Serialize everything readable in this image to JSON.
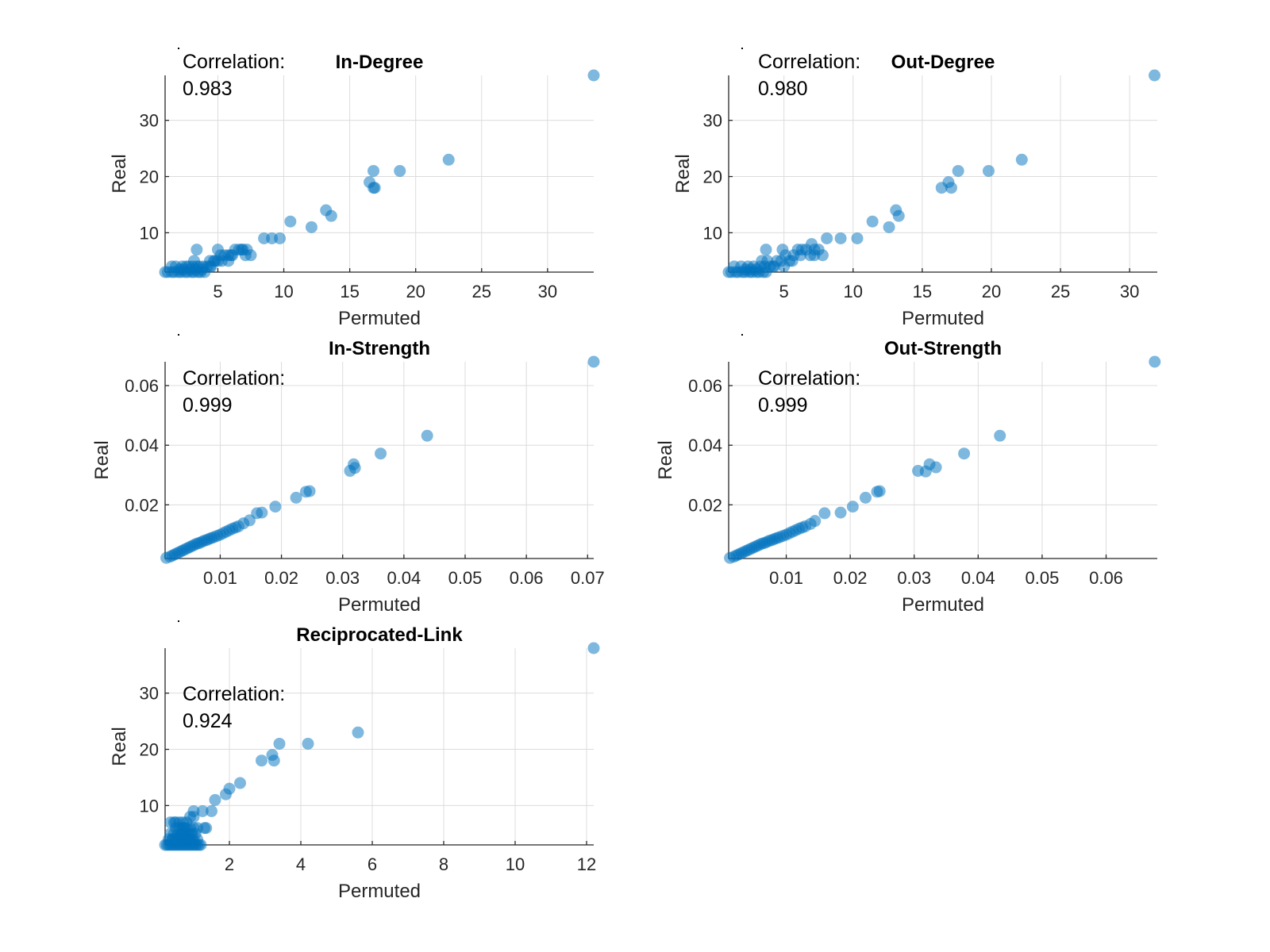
{
  "chart_data": [
    {
      "type": "scatter",
      "title": "In-Degree",
      "xlabel": "Permuted",
      "ylabel": "Real",
      "correlation_label": "Correlation:",
      "correlation_value": "0.983",
      "xlim": [
        1,
        33.5
      ],
      "ylim": [
        3,
        38
      ],
      "xticks": [
        5,
        10,
        15,
        20,
        25,
        30
      ],
      "yticks": [
        10,
        20,
        30
      ],
      "grid": true,
      "marker_color": "#0072BD",
      "x": [
        1,
        1.2,
        1.5,
        1.7,
        2,
        2.2,
        2.5,
        2.7,
        3,
        3.2,
        3.5,
        3.7,
        4,
        1.5,
        1.8,
        2.3,
        2.6,
        2.8,
        3.1,
        3.4,
        3.6,
        3.9,
        2.1,
        2.4,
        2.9,
        3.3,
        3.8,
        4.2,
        4.5,
        4.8,
        5,
        5.3,
        4.4,
        4.7,
        5.5,
        5.8,
        6,
        6.3,
        6.6,
        6.9,
        7.2,
        7.5,
        5.2,
        6.1,
        6.8,
        7.1,
        3.4,
        5,
        5.8,
        4.4,
        3.2,
        8.5,
        9.1,
        9.7,
        10.5,
        12.1,
        13.2,
        13.6,
        16.5,
        16.8,
        16.8,
        16.9,
        18.8,
        22.5,
        33.5
      ],
      "y": [
        3,
        3,
        3,
        3,
        3,
        3,
        3,
        3,
        3,
        3,
        3,
        3,
        3,
        4,
        4,
        4,
        4,
        4,
        4,
        4,
        4,
        4,
        3.5,
        3.5,
        3.5,
        3.5,
        3.5,
        4,
        4,
        5,
        5,
        5,
        5,
        5,
        6,
        6,
        6,
        7,
        7,
        7,
        7,
        6,
        6,
        6,
        7,
        6,
        7,
        7,
        5,
        4,
        5,
        9,
        9,
        9,
        12,
        11,
        14,
        13,
        19,
        21,
        18,
        18,
        21,
        23,
        38
      ]
    },
    {
      "type": "scatter",
      "title": "Out-Degree",
      "xlabel": "Permuted",
      "ylabel": "Real",
      "correlation_label": "Correlation:",
      "correlation_value": "0.980",
      "xlim": [
        1,
        32
      ],
      "ylim": [
        3,
        38
      ],
      "xticks": [
        5,
        10,
        15,
        20,
        25,
        30
      ],
      "yticks": [
        10,
        20,
        30
      ],
      "grid": true,
      "marker_color": "#0072BD",
      "x": [
        1,
        1.2,
        1.5,
        1.7,
        2,
        2.2,
        2.5,
        2.7,
        3,
        3.2,
        3.5,
        3.7,
        1.4,
        1.9,
        2.4,
        2.8,
        3.3,
        3.6,
        4,
        2.2,
        2.6,
        3,
        3.4,
        3.8,
        4.2,
        4.5,
        4.8,
        5.1,
        5.4,
        4.3,
        5,
        5.7,
        6,
        6.3,
        6.6,
        6.9,
        7.2,
        7.5,
        7,
        5.6,
        6.2,
        7.2,
        3.7,
        4.9,
        7.8,
        8.1,
        9.1,
        10.3,
        11.4,
        12.6,
        13.1,
        13.3,
        16.4,
        16.9,
        17.1,
        17.6,
        19.8,
        22.2,
        31.8
      ],
      "y": [
        3,
        3,
        3,
        3,
        3,
        3,
        3,
        3,
        3,
        3,
        3,
        3,
        4,
        4,
        4,
        4,
        4,
        4,
        4,
        3.5,
        3.5,
        3.5,
        5,
        5,
        4,
        5,
        5,
        6,
        5,
        4,
        4,
        6,
        7,
        7,
        7,
        6,
        6,
        7,
        8,
        5,
        6,
        7,
        7,
        7,
        6,
        9,
        9,
        9,
        12,
        11,
        14,
        13,
        18,
        19,
        18,
        21,
        21,
        23,
        38
      ]
    },
    {
      "type": "scatter",
      "title": "In-Strength",
      "xlabel": "Permuted",
      "ylabel": "Real",
      "correlation_label": "Correlation:",
      "correlation_value": "0.999",
      "xlim": [
        0.001,
        0.071
      ],
      "ylim": [
        0.002,
        0.068
      ],
      "xticks": [
        0.01,
        0.02,
        0.03,
        0.04,
        0.05,
        0.06,
        0.07
      ],
      "xtick_labels": [
        "0.01",
        "0.02",
        "0.03",
        "0.04",
        "0.05",
        "0.06",
        "0.07"
      ],
      "yticks": [
        0.02,
        0.04,
        0.06
      ],
      "ytick_labels": [
        "0.02",
        "0.04",
        "0.06"
      ],
      "grid": true,
      "marker_color": "#0072BD",
      "x": [
        0.0012,
        0.0018,
        0.0022,
        0.0026,
        0.003,
        0.0034,
        0.0038,
        0.0042,
        0.0046,
        0.005,
        0.0054,
        0.0058,
        0.0062,
        0.0066,
        0.007,
        0.0074,
        0.0078,
        0.0082,
        0.0086,
        0.009,
        0.0095,
        0.01,
        0.0105,
        0.011,
        0.0115,
        0.012,
        0.0125,
        0.013,
        0.0138,
        0.0148,
        0.016,
        0.0168,
        0.019,
        0.0224,
        0.024,
        0.0246,
        0.0312,
        0.0318,
        0.032,
        0.0362,
        0.0438,
        0.071
      ],
      "y": [
        0.0022,
        0.0026,
        0.003,
        0.0034,
        0.0038,
        0.0042,
        0.0046,
        0.005,
        0.0054,
        0.0058,
        0.0062,
        0.0066,
        0.007,
        0.0072,
        0.0076,
        0.008,
        0.0082,
        0.0086,
        0.0089,
        0.0092,
        0.0096,
        0.01,
        0.0105,
        0.011,
        0.0115,
        0.012,
        0.0124,
        0.0128,
        0.0138,
        0.0148,
        0.0172,
        0.0174,
        0.0194,
        0.0224,
        0.0244,
        0.0246,
        0.0314,
        0.0336,
        0.0324,
        0.0372,
        0.0432,
        0.068
      ]
    },
    {
      "type": "scatter",
      "title": "Out-Strength",
      "xlabel": "Permuted",
      "ylabel": "Real",
      "correlation_label": "Correlation:",
      "correlation_value": "0.999",
      "xlim": [
        0.001,
        0.068
      ],
      "ylim": [
        0.002,
        0.068
      ],
      "xticks": [
        0.01,
        0.02,
        0.03,
        0.04,
        0.05,
        0.06
      ],
      "xtick_labels": [
        "0.01",
        "0.02",
        "0.03",
        "0.04",
        "0.05",
        "0.06"
      ],
      "yticks": [
        0.02,
        0.04,
        0.06
      ],
      "ytick_labels": [
        "0.02",
        "0.04",
        "0.06"
      ],
      "grid": true,
      "marker_color": "#0072BD",
      "x": [
        0.0012,
        0.0018,
        0.0022,
        0.0026,
        0.003,
        0.0034,
        0.0038,
        0.0042,
        0.0046,
        0.005,
        0.0054,
        0.0058,
        0.0062,
        0.0066,
        0.007,
        0.0074,
        0.0078,
        0.0082,
        0.0086,
        0.009,
        0.0095,
        0.01,
        0.0105,
        0.011,
        0.0115,
        0.012,
        0.0125,
        0.013,
        0.0138,
        0.0145,
        0.016,
        0.0185,
        0.0204,
        0.0224,
        0.0242,
        0.0246,
        0.0306,
        0.0318,
        0.0324,
        0.0334,
        0.0378,
        0.0434,
        0.0676
      ],
      "y": [
        0.0022,
        0.0026,
        0.003,
        0.0034,
        0.0038,
        0.0042,
        0.0046,
        0.005,
        0.0054,
        0.0058,
        0.0062,
        0.0066,
        0.007,
        0.0072,
        0.0076,
        0.008,
        0.0082,
        0.0086,
        0.0089,
        0.0092,
        0.0096,
        0.01,
        0.0105,
        0.011,
        0.0115,
        0.012,
        0.0124,
        0.0128,
        0.0136,
        0.0146,
        0.0172,
        0.0174,
        0.0194,
        0.0224,
        0.0244,
        0.0246,
        0.0314,
        0.0312,
        0.0336,
        0.0326,
        0.0372,
        0.0432,
        0.068
      ]
    },
    {
      "type": "scatter",
      "title": "Reciprocated-Link",
      "xlabel": "Permuted",
      "ylabel": "Real",
      "correlation_label": "Correlation:",
      "correlation_value": "0.924",
      "xlim": [
        0.2,
        12.2
      ],
      "ylim": [
        3,
        38
      ],
      "xticks": [
        2,
        4,
        6,
        8,
        10,
        12
      ],
      "yticks": [
        10,
        20,
        30
      ],
      "grid": true,
      "marker_color": "#0072BD",
      "x": [
        0.2,
        0.25,
        0.3,
        0.35,
        0.4,
        0.45,
        0.5,
        0.55,
        0.6,
        0.65,
        0.7,
        0.75,
        0.8,
        0.85,
        0.9,
        0.95,
        1,
        1.05,
        1.1,
        1.15,
        1.2,
        0.3,
        0.4,
        0.5,
        0.6,
        0.7,
        0.8,
        0.9,
        1,
        1.1,
        0.35,
        0.45,
        0.55,
        0.65,
        0.75,
        0.85,
        0.95,
        1.05,
        0.5,
        0.6,
        0.7,
        0.8,
        0.9,
        1,
        0.4,
        0.55,
        0.65,
        0.75,
        0.85,
        0.95,
        0.45,
        0.6,
        0.7,
        0.8,
        0.9,
        1.0,
        1.1,
        0.35,
        0.5,
        0.75,
        1.0,
        1.3,
        1.35,
        1.5,
        1.25,
        1.6,
        1.9,
        2.0,
        2.3,
        2.9,
        3.2,
        3.25,
        3.4,
        4.2,
        5.6,
        12.2
      ],
      "y": [
        3,
        3,
        3,
        3,
        3,
        3,
        3,
        3,
        3,
        3,
        3,
        3,
        3,
        3,
        3,
        3,
        3,
        3,
        3,
        3,
        3,
        4,
        4,
        4,
        4,
        4,
        4,
        4,
        4,
        4,
        5,
        5,
        5,
        5,
        5,
        5,
        5,
        5,
        6,
        6,
        6,
        6,
        6,
        6,
        4,
        4,
        5,
        5,
        4,
        4,
        7,
        7,
        7,
        7,
        8,
        8,
        6,
        7,
        7,
        6,
        9,
        6,
        6,
        9,
        9,
        11,
        12,
        13,
        14,
        18,
        19,
        18,
        21,
        21,
        23,
        38
      ]
    }
  ]
}
